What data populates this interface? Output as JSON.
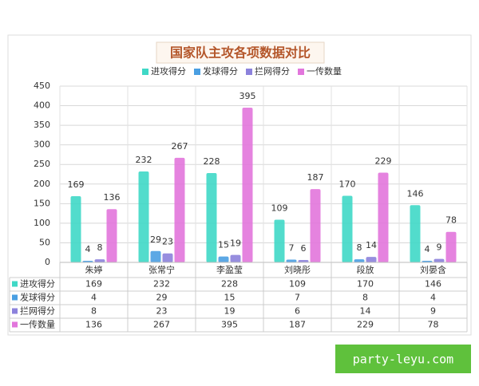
{
  "chart_data": {
    "type": "bar",
    "title": "国家队主攻各项数据对比",
    "categories": [
      "朱婷",
      "张常宁",
      "李盈莹",
      "刘晓彤",
      "段放",
      "刘晏含"
    ],
    "series": [
      {
        "name": "进攻得分",
        "color": "#3fd8c6",
        "values": [
          169,
          232,
          228,
          109,
          170,
          146
        ]
      },
      {
        "name": "发球得分",
        "color": "#4a9fe2",
        "values": [
          4,
          29,
          15,
          7,
          8,
          4
        ]
      },
      {
        "name": "拦网得分",
        "color": "#8c82dc",
        "values": [
          8,
          23,
          19,
          6,
          14,
          9
        ]
      },
      {
        "name": "一传数量",
        "color": "#e276dc",
        "values": [
          136,
          267,
          395,
          187,
          229,
          78
        ]
      }
    ],
    "ylim": [
      0,
      450
    ],
    "yticks": [
      0,
      50,
      100,
      150,
      200,
      250,
      300,
      350,
      400,
      450
    ],
    "grid": true,
    "legend": "top",
    "data_table": true
  },
  "watermark": "party-leyu.com"
}
